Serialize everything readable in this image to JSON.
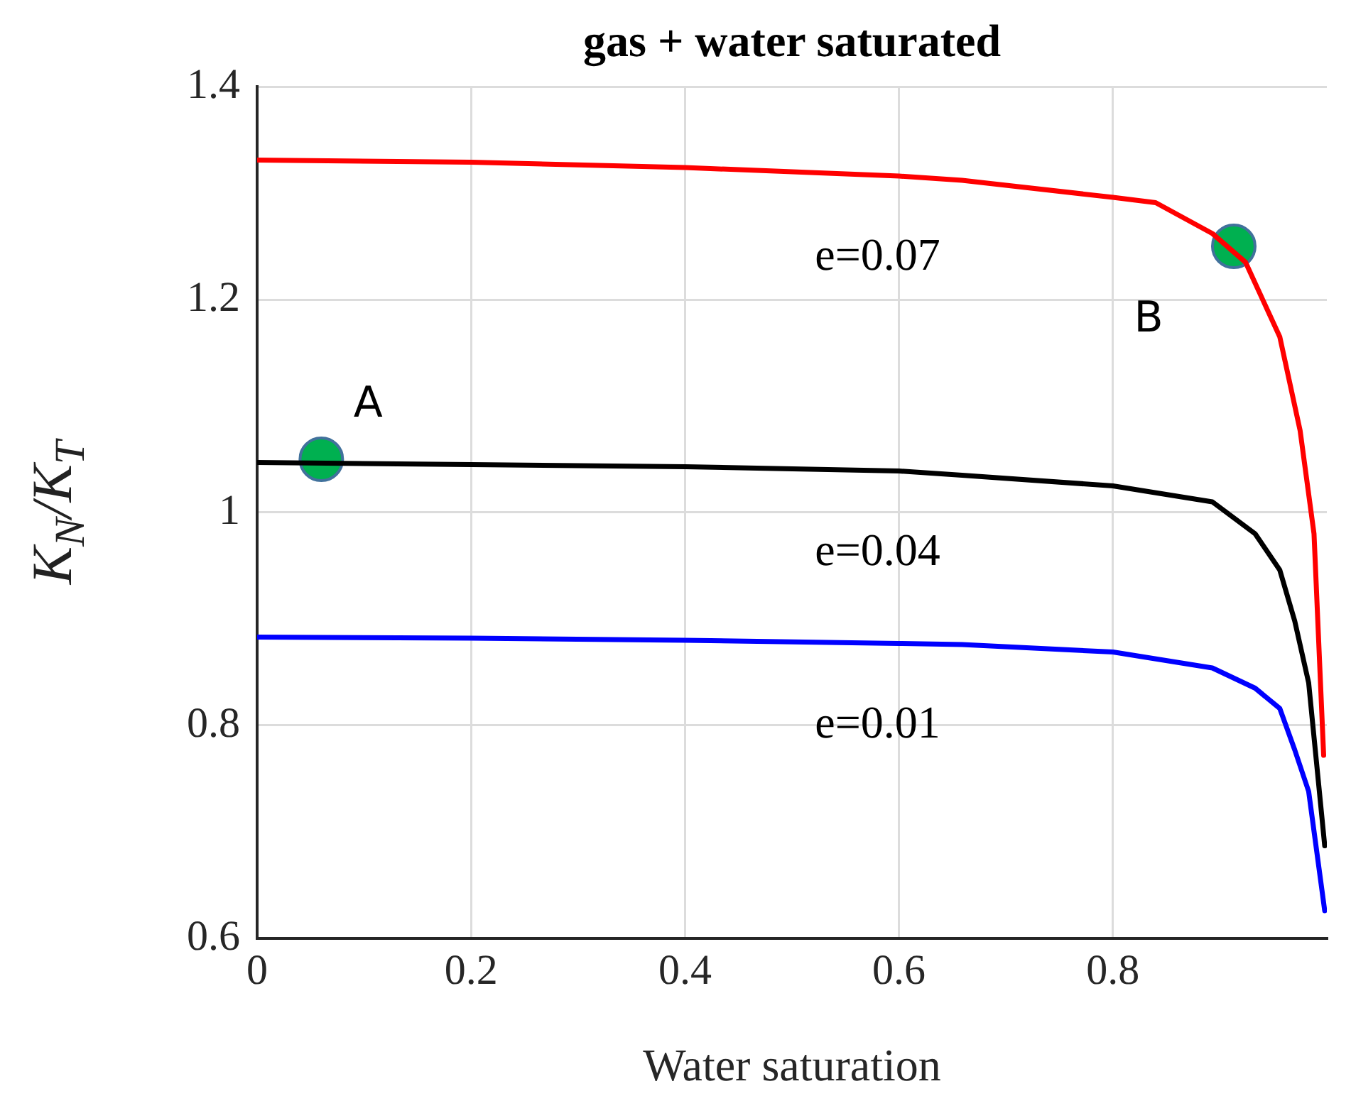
{
  "chart_data": {
    "type": "line",
    "title": "gas + water saturated",
    "xlabel": "Water saturation",
    "ylabel": "K$_{N}$/K$_{T}$",
    "xlim": [
      0,
      1
    ],
    "xticks": [
      0,
      0.2,
      0.4,
      0.6,
      0.8
    ],
    "ylim": [
      0.6,
      1.4
    ],
    "yticks": [
      0.6,
      0.8,
      1,
      1.2,
      1.4
    ],
    "grid": true,
    "marker": "none",
    "line_style": "solid",
    "series": [
      {
        "name": "e=0.07",
        "color": "#ff0000",
        "x": [
          0,
          0.2,
          0.4,
          0.6,
          0.659,
          0.8,
          0.84,
          0.893,
          0.924,
          0.956,
          0.975,
          0.988,
          0.997
        ],
        "values": [
          1.331,
          1.329,
          1.324,
          1.316,
          1.312,
          1.296,
          1.291,
          1.262,
          1.235,
          1.165,
          1.077,
          0.98,
          0.772
        ]
      },
      {
        "name": "e=0.04",
        "color": "#000000",
        "x": [
          0,
          0.2,
          0.4,
          0.6,
          0.659,
          0.8,
          0.893,
          0.933,
          0.956,
          0.97,
          0.983,
          0.998
        ],
        "values": [
          1.047,
          1.045,
          1.043,
          1.039,
          1.035,
          1.025,
          1.01,
          0.98,
          0.946,
          0.898,
          0.84,
          0.687
        ]
      },
      {
        "name": "e=0.01",
        "color": "#0000ff",
        "x": [
          0,
          0.2,
          0.4,
          0.6,
          0.659,
          0.8,
          0.893,
          0.933,
          0.956,
          0.97,
          0.983,
          0.998
        ],
        "values": [
          0.883,
          0.882,
          0.88,
          0.877,
          0.876,
          0.869,
          0.854,
          0.835,
          0.816,
          0.777,
          0.738,
          0.626
        ]
      },
      {
        "name": "A",
        "type": "scatter",
        "marker": "circle",
        "color": "#00b050",
        "x": [
          0.06
        ],
        "values": [
          1.05
        ]
      },
      {
        "name": "B",
        "type": "scatter",
        "marker": "circle",
        "color": "#00b050",
        "x": [
          0.913
        ],
        "values": [
          1.25
        ]
      }
    ]
  }
}
